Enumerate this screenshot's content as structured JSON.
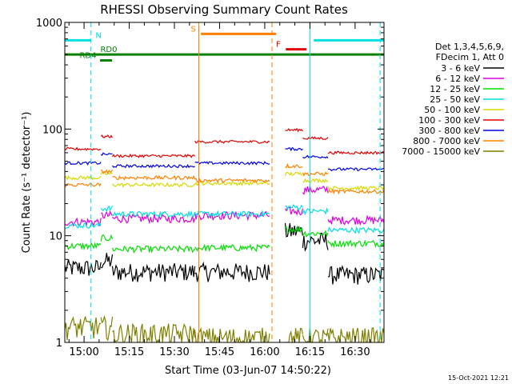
{
  "chart_data": {
    "type": "line",
    "title": "RHESSI Observing Summary Count Rates",
    "xlabel": "Start Time (03-Jun-07 14:50:22)",
    "ylabel": "Count Rate (s⁻¹ detector⁻¹)",
    "yscale": "log",
    "ylim": [
      1,
      1000
    ],
    "xlim_minutes": [
      -6.4,
      99.6
    ],
    "x_ticks": [
      "15:00",
      "15:15",
      "15:30",
      "15:45",
      "16:00",
      "16:15",
      "16:30"
    ],
    "x_tick_minutes": [
      0,
      15,
      30,
      45,
      60,
      75,
      90
    ],
    "y_ticks": [
      "1",
      "10",
      "100",
      "1000"
    ],
    "y_tick_values": [
      1,
      10,
      100,
      1000
    ],
    "footer_date": "15-Oct-2021 12:21",
    "legend": {
      "header": [
        "Det 1,3,4,5,6,9,",
        "FDecim 1, Att 0"
      ],
      "entries": [
        {
          "label": "3 - 6 keV",
          "color": "#000000"
        },
        {
          "label": "6 - 12 keV",
          "color": "#e000e0"
        },
        {
          "label": "12 - 25 keV",
          "color": "#00e000"
        },
        {
          "label": "25 - 50 keV",
          "color": "#00e0e0"
        },
        {
          "label": "50 - 100 keV",
          "color": "#d8d800"
        },
        {
          "label": "100 - 300 keV",
          "color": "#e00000"
        },
        {
          "label": "300 - 800 keV",
          "color": "#0000e0"
        },
        {
          "label": "800 - 7000 keV",
          "color": "#ff8000"
        },
        {
          "label": "7000 - 15000 keV",
          "color": "#808000"
        }
      ]
    },
    "status_bars": [
      {
        "label": "N",
        "color": "#00e0e0",
        "value": 680,
        "x0": -6.4,
        "x1": 2.3,
        "label_x": 4.8
      },
      {
        "label": "N",
        "color": "#00e0e0",
        "value": 680,
        "x0": 76.3,
        "x1": 99.6,
        "label_x": null
      },
      {
        "label": "S",
        "color": "#ff8000",
        "value": 780,
        "x0": 38.8,
        "x1": 63.8,
        "label_x": 36.3
      },
      {
        "label": "F",
        "color": "#e00000",
        "value": 560,
        "x0": 67.0,
        "x1": 73.8,
        "label_x": 64.5
      },
      {
        "label": "RD0",
        "color": "#008000",
        "value": 500,
        "x0": -6.4,
        "x1": 99.6,
        "label_x": 8.2
      },
      {
        "label": "RD4",
        "color": "#008000",
        "value": 440,
        "x0": 5.3,
        "x1": 9.3,
        "label_x": 1.3
      }
    ],
    "event_lines": [
      {
        "color": "#00e0e0",
        "style": "dashed",
        "x": 2.3
      },
      {
        "color": "#ff8000",
        "style": "solid",
        "x": 38.1
      },
      {
        "color": "#ff8000",
        "style": "dashed",
        "x": 62.4
      },
      {
        "color": "#00e0e0",
        "style": "solid",
        "x": 75.0
      },
      {
        "color": "#00e0e0",
        "style": "dashed",
        "x": 98.3
      }
    ],
    "segment_boundaries_minutes": [
      -6.4,
      5.6,
      9.4,
      36.8,
      61.6,
      66.8,
      72.6,
      81.0,
      99.6
    ],
    "series": [
      {
        "name": "3 - 6 keV",
        "color": "#000000",
        "levels": [
          5.0,
          5.8,
          4.6,
          4.6,
          null,
          11.0,
          9.0,
          4.3,
          null
        ],
        "noise": 0.2
      },
      {
        "name": "6 - 12 keV",
        "color": "#e000e0",
        "levels": [
          13.5,
          15.5,
          14.5,
          15.5,
          null,
          17.0,
          27.0,
          14.0,
          null
        ],
        "noise": 0.09
      },
      {
        "name": "12 - 25 keV",
        "color": "#00e000",
        "levels": [
          8.0,
          9.5,
          7.5,
          7.7,
          null,
          11.5,
          10.5,
          8.5,
          null
        ],
        "noise": 0.07
      },
      {
        "name": "25 - 50 keV",
        "color": "#00e0e0",
        "levels": [
          12.5,
          18.0,
          16.0,
          16.0,
          null,
          18.5,
          17.0,
          11.3,
          null
        ],
        "noise": 0.06
      },
      {
        "name": "50 - 100 keV",
        "color": "#d8d800",
        "levels": [
          35.0,
          38.0,
          30.0,
          31.0,
          null,
          38.0,
          33.0,
          28.0,
          null
        ],
        "noise": 0.04
      },
      {
        "name": "100 - 300 keV",
        "color": "#e00000",
        "levels": [
          65.0,
          85.0,
          56.0,
          76.0,
          null,
          98.0,
          82.0,
          60.0,
          null
        ],
        "noise": 0.03
      },
      {
        "name": "300 - 800 keV",
        "color": "#0000e0",
        "levels": [
          48.0,
          58.0,
          45.0,
          48.0,
          null,
          65.0,
          55.0,
          42.0,
          null
        ],
        "noise": 0.03
      },
      {
        "name": "800 - 7000 keV",
        "color": "#ff8000",
        "levels": [
          30.0,
          40.0,
          35.0,
          33.0,
          null,
          45.0,
          38.0,
          26.0,
          null
        ],
        "noise": 0.04
      },
      {
        "name": "7000 - 15000 keV",
        "color": "#808000",
        "levels": [
          1.4,
          1.4,
          1.2,
          1.1,
          null,
          1.1,
          1.1,
          1.1,
          null
        ],
        "noise": 0.25
      }
    ]
  }
}
